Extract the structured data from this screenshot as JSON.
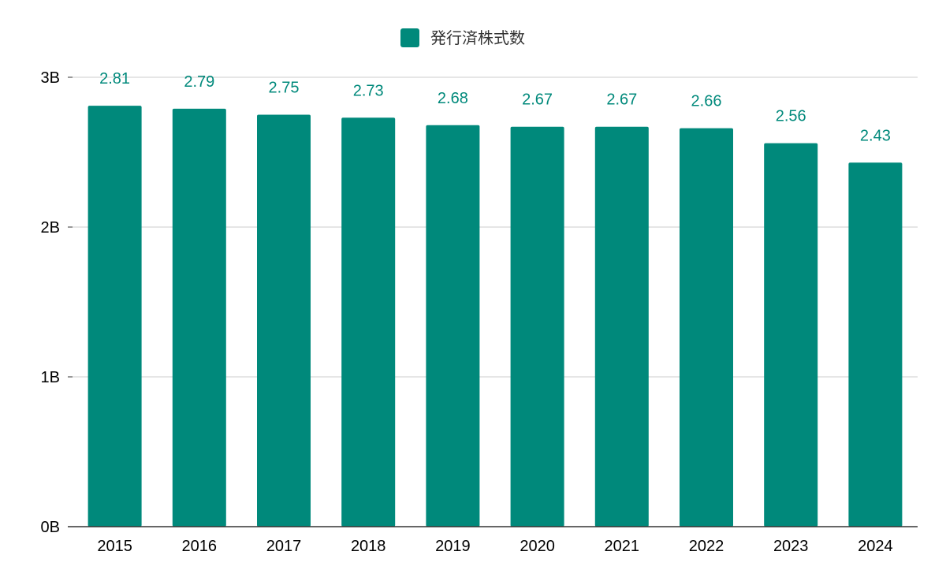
{
  "chart_data": {
    "type": "bar",
    "categories": [
      "2015",
      "2016",
      "2017",
      "2018",
      "2019",
      "2020",
      "2021",
      "2022",
      "2023",
      "2024"
    ],
    "series": [
      {
        "name": "発行済株式数",
        "values": [
          2.81,
          2.79,
          2.75,
          2.73,
          2.68,
          2.67,
          2.67,
          2.66,
          2.56,
          2.43
        ],
        "data_labels": [
          "2.81",
          "2.79",
          "2.75",
          "2.73",
          "2.68",
          "2.67",
          "2.67",
          "2.66",
          "2.56",
          "2.43"
        ],
        "color": "#00897b"
      }
    ],
    "unit": "B",
    "ylim": [
      0,
      3
    ],
    "y_ticks": [
      {
        "value": 0,
        "label": "0B"
      },
      {
        "value": 1,
        "label": "1B"
      },
      {
        "value": 2,
        "label": "2B"
      },
      {
        "value": 3,
        "label": "3B"
      }
    ],
    "grid": true,
    "legend_position": "top-center",
    "colors": {
      "bar": "#00897b",
      "data_label": "#00897b",
      "grid": "#cccccc",
      "axis": "#333333"
    }
  }
}
